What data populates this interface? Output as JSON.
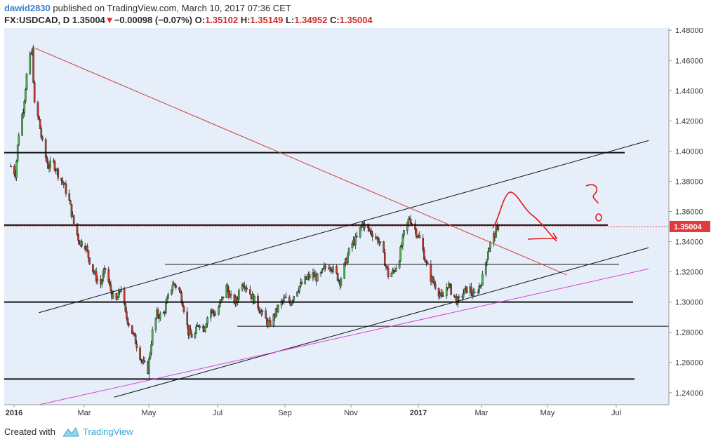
{
  "header": {
    "author": "dawid2830",
    "published": "published on TradingView.com, March 10, 2017 07:36 CET",
    "symbol": "FX:USDCAD, D",
    "last": "1.35004",
    "change": "−0.00098 (−0.07%)",
    "o_label": "O:",
    "o_value": "1.35102",
    "h_label": "H:",
    "h_value": "1.35149",
    "l_label": "L:",
    "l_value": "1.34952",
    "c_label": "C:",
    "c_value": "1.35004"
  },
  "footer": {
    "created_with": "Created with",
    "brand": "TradingView"
  },
  "colors": {
    "background": "#e5eef9",
    "up": "#4caf50",
    "down": "#c0392b",
    "price_tag": "#e03a3a",
    "red_trend": "#d23c3c",
    "magenta_trend": "#e040d0",
    "annotation": "#e01818"
  },
  "chart_data": {
    "type": "candlestick",
    "symbol": "FX:USDCAD",
    "timeframe": "D",
    "x_labels": [
      "2016",
      "Mar",
      "May",
      "Jul",
      "Sep",
      "Nov",
      "2017",
      "Mar",
      "May",
      "Jul"
    ],
    "y_ticks": [
      "1.48000",
      "1.46000",
      "1.44000",
      "1.42000",
      "1.40000",
      "1.38000",
      "1.36000",
      "1.34000",
      "1.32000",
      "1.30000",
      "1.28000",
      "1.26000",
      "1.24000"
    ],
    "ylim": [
      1.232,
      1.4815
    ],
    "current_price": "1.35004",
    "close_path": [
      [
        "2016-01-01",
        1.39
      ],
      [
        "2016-01-05",
        1.385
      ],
      [
        "2016-01-08",
        1.412
      ],
      [
        "2016-01-12",
        1.428
      ],
      [
        "2016-01-15",
        1.45
      ],
      [
        "2016-01-18",
        1.462
      ],
      [
        "2016-01-20",
        1.466
      ],
      [
        "2016-01-22",
        1.43
      ],
      [
        "2016-01-26",
        1.42
      ],
      [
        "2016-01-29",
        1.405
      ],
      [
        "2016-02-03",
        1.39
      ],
      [
        "2016-02-08",
        1.392
      ],
      [
        "2016-02-12",
        1.385
      ],
      [
        "2016-02-17",
        1.378
      ],
      [
        "2016-02-21",
        1.37
      ],
      [
        "2016-02-26",
        1.352
      ],
      [
        "2016-03-02",
        1.34
      ],
      [
        "2016-03-07",
        1.338
      ],
      [
        "2016-03-12",
        1.325
      ],
      [
        "2016-03-17",
        1.316
      ],
      [
        "2016-03-21",
        1.312
      ],
      [
        "2016-03-25",
        1.322
      ],
      [
        "2016-03-29",
        1.31
      ],
      [
        "2016-04-03",
        1.298
      ],
      [
        "2016-04-08",
        1.31
      ],
      [
        "2016-04-12",
        1.292
      ],
      [
        "2016-04-17",
        1.282
      ],
      [
        "2016-04-22",
        1.272
      ],
      [
        "2016-04-27",
        1.26
      ],
      [
        "2016-05-02",
        1.255
      ],
      [
        "2016-05-06",
        1.28
      ],
      [
        "2016-05-10",
        1.292
      ],
      [
        "2016-05-15",
        1.29
      ],
      [
        "2016-05-20",
        1.303
      ],
      [
        "2016-05-24",
        1.312
      ],
      [
        "2016-05-29",
        1.31
      ],
      [
        "2016-06-02",
        1.3
      ],
      [
        "2016-06-07",
        1.28
      ],
      [
        "2016-06-12",
        1.276
      ],
      [
        "2016-06-16",
        1.286
      ],
      [
        "2016-06-21",
        1.283
      ],
      [
        "2016-06-26",
        1.295
      ],
      [
        "2016-07-01",
        1.292
      ],
      [
        "2016-07-06",
        1.3
      ],
      [
        "2016-07-11",
        1.31
      ],
      [
        "2016-07-15",
        1.302
      ],
      [
        "2016-07-20",
        1.3
      ],
      [
        "2016-07-24",
        1.315
      ],
      [
        "2016-07-29",
        1.31
      ],
      [
        "2016-08-03",
        1.303
      ],
      [
        "2016-08-08",
        1.298
      ],
      [
        "2016-08-13",
        1.29
      ],
      [
        "2016-08-18",
        1.285
      ],
      [
        "2016-08-22",
        1.29
      ],
      [
        "2016-08-27",
        1.298
      ],
      [
        "2016-09-01",
        1.302
      ],
      [
        "2016-09-06",
        1.3
      ],
      [
        "2016-09-11",
        1.308
      ],
      [
        "2016-09-16",
        1.312
      ],
      [
        "2016-09-21",
        1.316
      ],
      [
        "2016-09-26",
        1.318
      ],
      [
        "2016-10-01",
        1.315
      ],
      [
        "2016-10-06",
        1.322
      ],
      [
        "2016-10-11",
        1.325
      ],
      [
        "2016-10-15",
        1.32
      ],
      [
        "2016-10-20",
        1.314
      ],
      [
        "2016-10-25",
        1.326
      ],
      [
        "2016-10-30",
        1.338
      ],
      [
        "2016-11-04",
        1.342
      ],
      [
        "2016-11-09",
        1.352
      ],
      [
        "2016-11-14",
        1.348
      ],
      [
        "2016-11-19",
        1.345
      ],
      [
        "2016-11-24",
        1.34
      ],
      [
        "2016-11-28",
        1.33
      ],
      [
        "2016-12-02",
        1.318
      ],
      [
        "2016-12-07",
        1.32
      ],
      [
        "2016-12-12",
        1.33
      ],
      [
        "2016-12-16",
        1.345
      ],
      [
        "2016-12-21",
        1.356
      ],
      [
        "2016-12-26",
        1.348
      ],
      [
        "2016-12-31",
        1.34
      ],
      [
        "2017-01-05",
        1.325
      ],
      [
        "2017-01-09",
        1.316
      ],
      [
        "2017-01-14",
        1.31
      ],
      [
        "2017-01-19",
        1.302
      ],
      [
        "2017-01-24",
        1.312
      ],
      [
        "2017-01-28",
        1.306
      ],
      [
        "2017-02-02",
        1.3
      ],
      [
        "2017-02-07",
        1.306
      ],
      [
        "2017-02-12",
        1.31
      ],
      [
        "2017-02-16",
        1.304
      ],
      [
        "2017-02-21",
        1.31
      ],
      [
        "2017-02-25",
        1.318
      ],
      [
        "2017-03-01",
        1.335
      ],
      [
        "2017-03-05",
        1.342
      ],
      [
        "2017-03-10",
        1.35004
      ]
    ],
    "annotations": {
      "horizontal_lines": [
        1.399,
        1.351,
        1.325,
        1.3,
        1.284,
        1.249
      ],
      "red_trendline_from": [
        "2016-01-20",
        1.469
      ],
      "red_trendline_to": [
        "2017-05-10",
        1.318
      ],
      "channel_upper": [
        [
          "2016-01-26",
          1.293
        ],
        [
          "2017-07-22",
          1.407
        ]
      ],
      "channel_lower": [
        [
          "2016-04-02",
          1.237
        ],
        [
          "2017-07-22",
          1.336
        ]
      ],
      "magenta_trendline": [
        [
          "2016-01-26",
          1.232
        ],
        [
          "2017-07-22",
          1.322
        ]
      ]
    }
  }
}
